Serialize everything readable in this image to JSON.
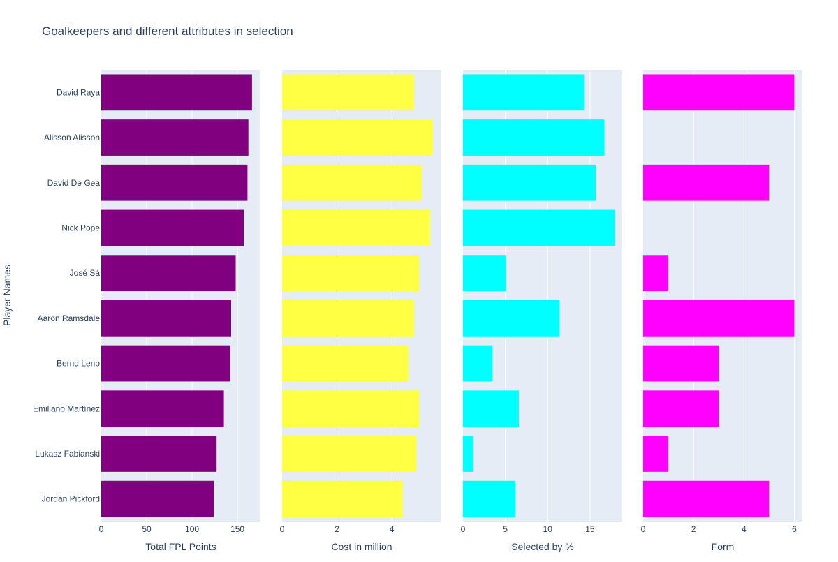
{
  "chart_data": {
    "type": "bar",
    "orientation": "horizontal",
    "title": "Goalkeepers and different attributes in selection",
    "ylabel": "Player Names",
    "categories": [
      "David Raya",
      "Alisson Alisson",
      "David De Gea",
      "Nick Pope",
      "José Sá",
      "Aaron Ramsdale",
      "Bernd Leno",
      "Emiliano Martínez",
      "Lukasz Fabianski",
      "Jordan Pickford"
    ],
    "grid": true,
    "panels": [
      {
        "xlabel": "Total FPL Points",
        "color": "#800080",
        "xlim": [
          0,
          175.3
        ],
        "xticks": [
          0,
          50,
          100,
          150
        ],
        "values": [
          166,
          162,
          161,
          157,
          148,
          143,
          142,
          135,
          127,
          124
        ]
      },
      {
        "xlabel": "Cost in million",
        "color": "#ffff44",
        "xlim": [
          0,
          5.8
        ],
        "xticks": [
          0,
          2,
          4
        ],
        "values": [
          4.8,
          5.5,
          5.1,
          5.4,
          5.0,
          4.8,
          4.6,
          5.0,
          4.9,
          4.4
        ]
      },
      {
        "xlabel": "Selected by %",
        "color": "#00ffff",
        "xlim": [
          0,
          18.8
        ],
        "xticks": [
          0,
          5,
          10,
          15
        ],
        "values": [
          14.3,
          16.7,
          15.7,
          17.9,
          5.1,
          11.4,
          3.5,
          6.6,
          1.2,
          6.2
        ]
      },
      {
        "xlabel": "Form",
        "color": "#ff00ff",
        "xlim": [
          0,
          6.32
        ],
        "xticks": [
          0,
          2,
          4,
          6
        ],
        "values": [
          6,
          0,
          5,
          0,
          1,
          6,
          3,
          3,
          1,
          5
        ]
      }
    ]
  }
}
